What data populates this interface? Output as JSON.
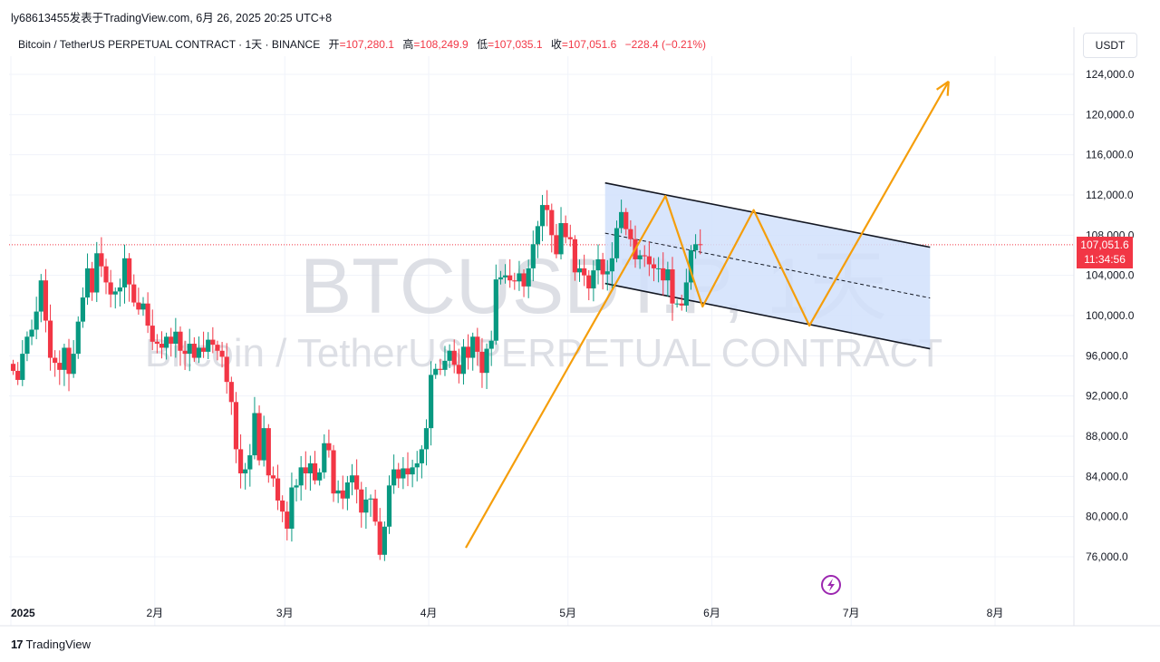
{
  "publisher": "ly68613455发表于TradingView.com, 6月 26, 2025 20:25 UTC+8",
  "legend": {
    "symbol": "Bitcoin / TetherUS PERPETUAL CONTRACT · 1天 · BINANCE",
    "open_label": "开",
    "open": "=107,280.1",
    "high_label": "高",
    "high": "=108,249.9",
    "low_label": "低",
    "low": "=107,035.1",
    "close_label": "收",
    "close": "=107,051.6",
    "change": "−228.4 (−0.21%)"
  },
  "currency": "USDT",
  "watermark": {
    "ticker": "BTCUSDT.P, 1天",
    "name": "Bitcoin / TetherUS PERPETUAL CONTRACT"
  },
  "price_tag": {
    "price": "107,051.6",
    "countdown": "11:34:56"
  },
  "brand": "TradingView",
  "colors": {
    "up": "#089981",
    "down": "#f23645",
    "channel": "#d1e0fb",
    "arrow": "#f59e0b",
    "watermark": "#d1d4dc",
    "lightning": "#9c27b0"
  },
  "chart_data": {
    "type": "candlestick",
    "yaxis_ticks": [
      "124,000.0",
      "120,000.0",
      "116,000.0",
      "112,000.0",
      "108,000.0",
      "104,000.0",
      "100,000.0",
      "96,000.0",
      "92,000.0",
      "88,000.0",
      "84,000.0",
      "80,000.0",
      "76,000.0"
    ],
    "ylim": [
      73000,
      127000
    ],
    "xaxis_ticks": [
      "2025",
      "2月",
      "3月",
      "4月",
      "5月",
      "6月",
      "7月",
      "8月"
    ],
    "last_price": 107051.6,
    "candle_closes": [
      94500,
      93600,
      96200,
      97900,
      98600,
      100400,
      103500,
      99500,
      95800,
      95300,
      94600,
      96800,
      94200,
      96200,
      99400,
      101800,
      104700,
      102300,
      106200,
      104900,
      103300,
      102100,
      102400,
      102800,
      105700,
      103100,
      101300,
      100600,
      101200,
      99000,
      97400,
      97200,
      96800,
      97900,
      97200,
      98400,
      96500,
      96200,
      97200,
      95800,
      96800,
      96400,
      97600,
      97100,
      96500,
      95900,
      93400,
      91400,
      86700,
      84300,
      84700,
      86100,
      90300,
      85600,
      88800,
      84100,
      83800,
      81600,
      80500,
      78800,
      82900,
      83100,
      84900,
      84300,
      85300,
      83600,
      84400,
      87300,
      86600,
      82300,
      82600,
      81800,
      83400,
      84100,
      82700,
      80400,
      81700,
      81800,
      79500,
      76200,
      79000,
      83100,
      84700,
      83800,
      84800,
      84200,
      84900,
      85300,
      86700,
      88800,
      94100,
      94700,
      94600,
      95500,
      96500,
      95100,
      94200,
      96900,
      95800,
      97900,
      96400,
      94300,
      96700,
      97500,
      103600,
      103800,
      104000,
      103500,
      103400,
      104200,
      102900,
      104700,
      107100,
      108900,
      111000,
      110500,
      108000,
      106100,
      109200,
      107800,
      107600,
      104300,
      104700,
      104000,
      102700,
      104500,
      105600,
      104100,
      104400,
      105700,
      108700,
      110300,
      108600,
      107600,
      105600,
      106000,
      105900,
      105100,
      104700,
      104700,
      103500,
      104600,
      101200,
      101200,
      101000,
      103300,
      106500,
      107100,
      107051
    ],
    "channel": {
      "upper": [
        {
          "date": "2025-05-09",
          "price": 113200
        },
        {
          "date": "2025-07-18",
          "price": 106800
        }
      ],
      "lower": [
        {
          "date": "2025-05-09",
          "price": 103200
        },
        {
          "date": "2025-07-18",
          "price": 96700
        }
      ]
    },
    "projection_arrow": [
      {
        "date": "2025-04-09",
        "price": 76900
      },
      {
        "date": "2025-05-22",
        "price": 111900
      },
      {
        "date": "2025-05-30",
        "price": 100900
      },
      {
        "date": "2025-06-10",
        "price": 110500
      },
      {
        "date": "2025-06-22",
        "price": 99000
      },
      {
        "date": "2025-07-22",
        "price": 123300
      }
    ]
  }
}
